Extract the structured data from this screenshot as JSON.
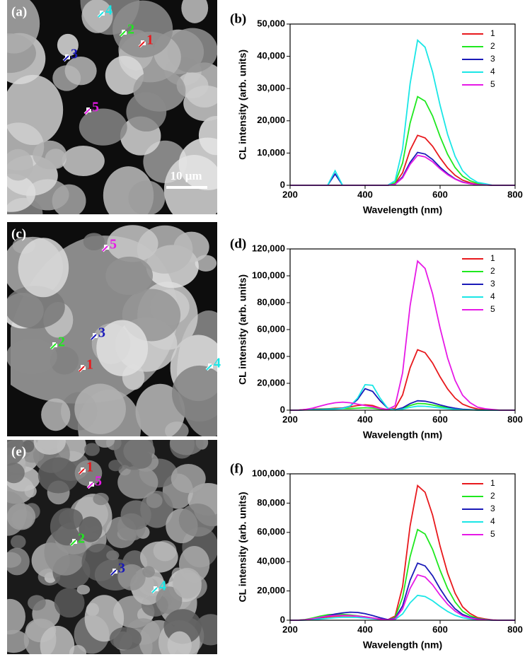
{
  "images": [
    {
      "label": "(a)",
      "scale_bar": "10 μm",
      "markers": [
        {
          "text": "1",
          "color": "#e8191d"
        },
        {
          "text": "2",
          "color": "#1fe81f"
        },
        {
          "text": "3",
          "color": "#1a1ab8"
        },
        {
          "text": "4",
          "color": "#1ae6e6"
        },
        {
          "text": "5",
          "color": "#e619e6"
        }
      ]
    },
    {
      "label": "(c)",
      "markers": [
        {
          "text": "1",
          "color": "#e8191d"
        },
        {
          "text": "2",
          "color": "#1fe81f"
        },
        {
          "text": "3",
          "color": "#1a1ab8"
        },
        {
          "text": "4",
          "color": "#1ae6e6"
        },
        {
          "text": "5",
          "color": "#e619e6"
        }
      ]
    },
    {
      "label": "(e)",
      "markers": [
        {
          "text": "1",
          "color": "#e8191d"
        },
        {
          "text": "2",
          "color": "#1fe81f"
        },
        {
          "text": "3",
          "color": "#1a1ab8"
        },
        {
          "text": "4",
          "color": "#1ae6e6"
        },
        {
          "text": "5",
          "color": "#e619e6"
        }
      ]
    }
  ],
  "chart_data": [
    {
      "type": "line",
      "panel": "(b)",
      "xlabel": "Wavelength (nm)",
      "ylabel": "CL intensity (arb. units)",
      "legend": "upper right",
      "x": [
        200,
        220,
        240,
        260,
        280,
        300,
        320,
        340,
        360,
        380,
        400,
        420,
        440,
        460,
        480,
        500,
        520,
        540,
        560,
        580,
        600,
        620,
        640,
        660,
        680,
        700,
        720,
        740,
        760,
        780,
        800
      ],
      "xlim": [
        200,
        800
      ],
      "xticks": [
        200,
        400,
        600,
        800
      ],
      "ylim": [
        0,
        50000
      ],
      "yticks": [
        0,
        {
          "value": 10000,
          "label": "10,000"
        },
        {
          "value": 20000,
          "label": "20,000"
        },
        {
          "value": 30000,
          "label": "30,000"
        },
        {
          "value": 40000,
          "label": "40,000"
        },
        {
          "value": 50000,
          "label": "50,000"
        }
      ],
      "series": [
        {
          "name": "1",
          "color": "#e8191d",
          "values": [
            0,
            0,
            0,
            0,
            0,
            0,
            0,
            0,
            0,
            0,
            0,
            0,
            0,
            0,
            500,
            3900,
            10900,
            15500,
            14700,
            12100,
            8500,
            5400,
            3100,
            1600,
            800,
            300,
            200,
            0,
            0,
            0,
            0
          ]
        },
        {
          "name": "2",
          "color": "#1fe81f",
          "values": [
            0,
            0,
            0,
            0,
            0,
            0,
            0,
            0,
            0,
            0,
            0,
            0,
            0,
            0,
            800,
            6900,
            19300,
            27500,
            26100,
            21500,
            15100,
            9600,
            5500,
            2800,
            1400,
            600,
            300,
            0,
            0,
            0,
            0
          ]
        },
        {
          "name": "3",
          "color": "#1a1ab8",
          "values": [
            0,
            0,
            0,
            0,
            0,
            0,
            3500,
            0,
            0,
            0,
            0,
            0,
            0,
            0,
            300,
            2600,
            7100,
            10200,
            9700,
            8000,
            5600,
            3600,
            2000,
            1000,
            500,
            200,
            100,
            0,
            0,
            0,
            0
          ]
        },
        {
          "name": "4",
          "color": "#1ae6e6",
          "values": [
            0,
            0,
            0,
            0,
            0,
            0,
            4500,
            0,
            0,
            0,
            0,
            0,
            0,
            0,
            1400,
            11300,
            31500,
            45000,
            42800,
            35100,
            24800,
            15800,
            9000,
            4500,
            2300,
            900,
            500,
            0,
            0,
            0,
            0
          ]
        },
        {
          "name": "5",
          "color": "#e619e6",
          "values": [
            0,
            0,
            0,
            0,
            0,
            0,
            0,
            0,
            0,
            0,
            0,
            0,
            0,
            0,
            300,
            2300,
            6500,
            9300,
            8800,
            7300,
            5100,
            3300,
            1900,
            900,
            500,
            200,
            100,
            0,
            0,
            0,
            0
          ]
        }
      ]
    },
    {
      "type": "line",
      "panel": "(d)",
      "xlabel": "Wavelength (nm)",
      "ylabel": "CL intensity (arb. units)",
      "legend": "upper right",
      "x": [
        200,
        220,
        240,
        260,
        280,
        300,
        320,
        340,
        360,
        380,
        400,
        420,
        440,
        460,
        480,
        500,
        520,
        540,
        560,
        580,
        600,
        620,
        640,
        660,
        680,
        700,
        720,
        740,
        760,
        780,
        800
      ],
      "xlim": [
        200,
        800
      ],
      "xticks": [
        200,
        400,
        600,
        800
      ],
      "ylim": [
        0,
        120000
      ],
      "yticks": [
        0,
        {
          "value": 20000,
          "label": "20,000"
        },
        {
          "value": 40000,
          "label": "40,000"
        },
        {
          "value": 60000,
          "label": "60,000"
        },
        {
          "value": 80000,
          "label": "80,000"
        },
        {
          "value": 100000,
          "label": "100,000"
        },
        {
          "value": 120000,
          "label": "120,000"
        }
      ],
      "series": [
        {
          "name": "1",
          "color": "#e8191d",
          "values": [
            0,
            0,
            500,
            800,
            1000,
            1000,
            1500,
            1500,
            2500,
            3500,
            4000,
            3500,
            1500,
            500,
            1400,
            11300,
            31500,
            45000,
            42800,
            35100,
            24800,
            15800,
            9000,
            4500,
            2300,
            900,
            500,
            0,
            0,
            0,
            0
          ]
        },
        {
          "name": "2",
          "color": "#1fe81f",
          "values": [
            0,
            0,
            300,
            500,
            800,
            1000,
            1200,
            1200,
            1200,
            1500,
            1800,
            1500,
            800,
            300,
            200,
            1300,
            3500,
            5000,
            4800,
            3900,
            2800,
            1800,
            1000,
            500,
            300,
            100,
            0,
            0,
            0,
            0,
            0
          ]
        },
        {
          "name": "3",
          "color": "#1a1ab8",
          "values": [
            0,
            0,
            200,
            400,
            600,
            800,
            1000,
            1500,
            3000,
            8000,
            16000,
            14000,
            7000,
            1500,
            300,
            1800,
            4900,
            7000,
            6700,
            5500,
            3900,
            2500,
            1400,
            700,
            400,
            100,
            0,
            0,
            0,
            0,
            0
          ]
        },
        {
          "name": "4",
          "color": "#1ae6e6",
          "values": [
            0,
            0,
            200,
            300,
            400,
            600,
            800,
            1200,
            3000,
            9000,
            19000,
            18500,
            9000,
            1500,
            100,
            800,
            2100,
            3000,
            2900,
            2300,
            1700,
            1100,
            600,
            300,
            200,
            100,
            0,
            0,
            0,
            0,
            0
          ]
        },
        {
          "name": "5",
          "color": "#e619e6",
          "values": [
            0,
            0,
            500,
            1500,
            3000,
            4500,
            5500,
            6000,
            5500,
            4500,
            3500,
            2500,
            1200,
            500,
            3300,
            27800,
            77700,
            111000,
            105500,
            86600,
            61100,
            38900,
            22200,
            11100,
            5600,
            2200,
            1100,
            500,
            0,
            0,
            0
          ]
        }
      ]
    },
    {
      "type": "line",
      "panel": "(f)",
      "xlabel": "Wavelength (nm)",
      "ylabel": "CL intensity (arb. units)",
      "legend": "upper right",
      "x": [
        200,
        220,
        240,
        260,
        280,
        300,
        320,
        340,
        360,
        380,
        400,
        420,
        440,
        460,
        480,
        500,
        520,
        540,
        560,
        580,
        600,
        620,
        640,
        660,
        680,
        700,
        720,
        740,
        760,
        780,
        800
      ],
      "xlim": [
        200,
        800
      ],
      "xticks": [
        200,
        400,
        600,
        800
      ],
      "ylim": [
        0,
        100000
      ],
      "yticks": [
        0,
        {
          "value": 20000,
          "label": "20,000"
        },
        {
          "value": 40000,
          "label": "40,000"
        },
        {
          "value": 60000,
          "label": "60,000"
        },
        {
          "value": 80000,
          "label": "80,000"
        },
        {
          "value": 100000,
          "label": "100,000"
        }
      ],
      "series": [
        {
          "name": "1",
          "color": "#e8191d",
          "values": [
            0,
            0,
            200,
            800,
            1500,
            2200,
            2700,
            3000,
            3000,
            2800,
            2300,
            1500,
            800,
            300,
            2800,
            23000,
            64400,
            92000,
            87400,
            71800,
            50600,
            32200,
            18400,
            9200,
            4600,
            1800,
            900,
            200,
            0,
            0,
            0
          ]
        },
        {
          "name": "2",
          "color": "#1fe81f",
          "values": [
            0,
            0,
            500,
            1500,
            2800,
            3700,
            4000,
            4000,
            3600,
            3000,
            2200,
            1300,
            600,
            200,
            1900,
            15500,
            43400,
            62000,
            58900,
            48400,
            34100,
            21700,
            12400,
            6200,
            3100,
            1200,
            600,
            100,
            0,
            0,
            0
          ]
        },
        {
          "name": "3",
          "color": "#1a1ab8",
          "values": [
            0,
            0,
            200,
            800,
            1800,
            3000,
            4200,
            5000,
            5500,
            5300,
            4500,
            3200,
            1700,
            500,
            1200,
            9800,
            27300,
            39000,
            37100,
            30400,
            21500,
            13700,
            7800,
            3900,
            2000,
            800,
            400,
            100,
            0,
            0,
            0
          ]
        },
        {
          "name": "4",
          "color": "#1ae6e6",
          "values": [
            0,
            0,
            100,
            400,
            800,
            1300,
            1700,
            2000,
            2000,
            1900,
            1500,
            1000,
            500,
            200,
            500,
            4300,
            11900,
            17000,
            16200,
            13300,
            9400,
            6000,
            3400,
            1700,
            900,
            300,
            200,
            0,
            0,
            0,
            0
          ]
        },
        {
          "name": "5",
          "color": "#e619e6",
          "values": [
            0,
            0,
            300,
            1000,
            2000,
            2800,
            3200,
            3300,
            3200,
            2800,
            2200,
            1500,
            700,
            300,
            900,
            7800,
            21700,
            31000,
            29500,
            24200,
            17100,
            10900,
            6200,
            3100,
            1600,
            600,
            300,
            100,
            0,
            0,
            0
          ]
        }
      ]
    }
  ]
}
